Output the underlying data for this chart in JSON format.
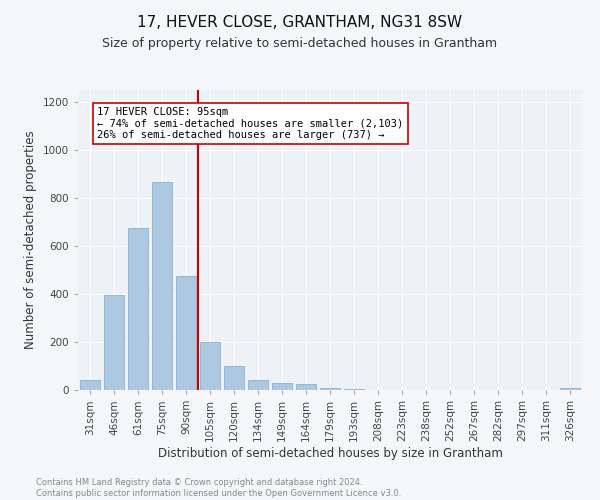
{
  "title": "17, HEVER CLOSE, GRANTHAM, NG31 8SW",
  "subtitle": "Size of property relative to semi-detached houses in Grantham",
  "xlabel": "Distribution of semi-detached houses by size in Grantham",
  "ylabel": "Number of semi-detached properties",
  "footnote1": "Contains HM Land Registry data © Crown copyright and database right 2024.",
  "footnote2": "Contains public sector information licensed under the Open Government Licence v3.0.",
  "categories": [
    "31sqm",
    "46sqm",
    "61sqm",
    "75sqm",
    "90sqm",
    "105sqm",
    "120sqm",
    "134sqm",
    "149sqm",
    "164sqm",
    "179sqm",
    "193sqm",
    "208sqm",
    "223sqm",
    "238sqm",
    "252sqm",
    "267sqm",
    "282sqm",
    "297sqm",
    "311sqm",
    "326sqm"
  ],
  "values": [
    40,
    395,
    675,
    865,
    475,
    200,
    100,
    40,
    28,
    25,
    10,
    5,
    2,
    1,
    1,
    1,
    0,
    0,
    0,
    1,
    10
  ],
  "bar_color": "#adc8e0",
  "bar_edge_color": "#7aaece",
  "annotation_title": "17 HEVER CLOSE: 95sqm",
  "annotation_line1": "← 74% of semi-detached houses are smaller (2,103)",
  "annotation_line2": "26% of semi-detached houses are larger (737) →",
  "red_line_color": "#cc0000",
  "annotation_box_color": "#ffffff",
  "annotation_box_edge": "#cc0000",
  "ylim": [
    0,
    1250
  ],
  "yticks": [
    0,
    200,
    400,
    600,
    800,
    1000,
    1200
  ],
  "background_color": "#eef2f7",
  "plot_bg_color": "#eef2f7",
  "fig_bg_color": "#f5f7fa",
  "grid_color": "#ffffff",
  "title_fontsize": 11,
  "subtitle_fontsize": 9,
  "axis_label_fontsize": 8.5,
  "tick_fontsize": 7.5,
  "footnote_fontsize": 6,
  "annotation_fontsize": 7.5
}
